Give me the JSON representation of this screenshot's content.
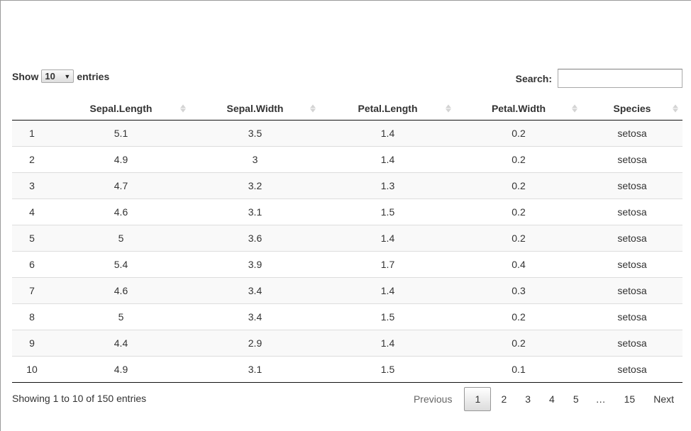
{
  "controls": {
    "show_label": "Show",
    "page_length": "10",
    "entries_label": "entries",
    "search_label": "Search:",
    "search_value": ""
  },
  "table": {
    "columns": [
      "",
      "Sepal.Length",
      "Sepal.Width",
      "Petal.Length",
      "Petal.Width",
      "Species"
    ],
    "rows": [
      [
        "1",
        "5.1",
        "3.5",
        "1.4",
        "0.2",
        "setosa"
      ],
      [
        "2",
        "4.9",
        "3",
        "1.4",
        "0.2",
        "setosa"
      ],
      [
        "3",
        "4.7",
        "3.2",
        "1.3",
        "0.2",
        "setosa"
      ],
      [
        "4",
        "4.6",
        "3.1",
        "1.5",
        "0.2",
        "setosa"
      ],
      [
        "5",
        "5",
        "3.6",
        "1.4",
        "0.2",
        "setosa"
      ],
      [
        "6",
        "5.4",
        "3.9",
        "1.7",
        "0.4",
        "setosa"
      ],
      [
        "7",
        "4.6",
        "3.4",
        "1.4",
        "0.3",
        "setosa"
      ],
      [
        "8",
        "5",
        "3.4",
        "1.5",
        "0.2",
        "setosa"
      ],
      [
        "9",
        "4.4",
        "2.9",
        "1.4",
        "0.2",
        "setosa"
      ],
      [
        "10",
        "4.9",
        "3.1",
        "1.5",
        "0.1",
        "setosa"
      ]
    ]
  },
  "footer": {
    "info": "Showing 1 to 10 of 150 entries",
    "previous": "Previous",
    "next": "Next",
    "pages": [
      "1",
      "2",
      "3",
      "4",
      "5",
      "…",
      "15"
    ],
    "current_page": "1"
  },
  "icons": {
    "sort": "sort-both-icon",
    "dropdown": "chevron-down-icon"
  },
  "colors": {
    "stripe": "#f9f9f9",
    "header_rule": "#111111",
    "row_rule": "#dddddd",
    "sort_icon": "#d3d3d3"
  }
}
